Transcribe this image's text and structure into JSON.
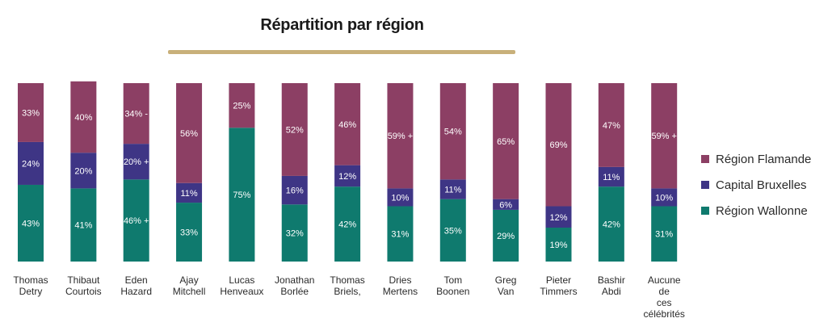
{
  "colors": {
    "flamande": "#8c3f64",
    "bruxelles": "#3e3585",
    "wallonne": "#0f7a6e",
    "accent": "#c8b07a"
  },
  "chart_data": {
    "type": "bar",
    "stacked": true,
    "title": "Répartition par région",
    "ylim": [
      0,
      100
    ],
    "categories": [
      [
        "Thomas",
        "Detry"
      ],
      [
        "Thibaut",
        "Courtois"
      ],
      [
        "Eden",
        "Hazard"
      ],
      [
        "Ajay",
        "Mitchell"
      ],
      [
        "Lucas",
        "Henveaux"
      ],
      [
        "Jonathan",
        "Borlée"
      ],
      [
        "Thomas",
        "Briels,"
      ],
      [
        "Dries",
        "Mertens"
      ],
      [
        "Tom",
        "Boonen"
      ],
      [
        "Greg",
        "Van"
      ],
      [
        "Pieter",
        "Timmers"
      ],
      [
        "Bashir",
        "Abdi"
      ],
      [
        "Aucune",
        "de",
        "ces",
        "célébrités"
      ]
    ],
    "series": [
      {
        "name": "Région Wallonne",
        "key": "wallonne",
        "values": [
          43,
          41,
          46,
          33,
          75,
          32,
          42,
          31,
          35,
          29,
          19,
          42,
          31
        ],
        "labels": [
          "43%",
          "41%",
          "46% +",
          "33%",
          "75%",
          "32%",
          "42%",
          "31%",
          "35%",
          "29%",
          "19%",
          "42%",
          "31%"
        ]
      },
      {
        "name": "Capital Bruxelles",
        "key": "bruxelles",
        "values": [
          24,
          20,
          20,
          11,
          0,
          16,
          12,
          10,
          11,
          6,
          12,
          11,
          10
        ],
        "labels": [
          "24%",
          "20%",
          "20% +",
          "11%",
          "",
          "16%",
          "12%",
          "10%",
          "11%",
          "6%",
          "12%",
          "11%",
          "10%"
        ]
      },
      {
        "name": "Région Flamande",
        "key": "flamande",
        "values": [
          33,
          40,
          34,
          56,
          25,
          52,
          46,
          59,
          54,
          65,
          69,
          47,
          59
        ],
        "labels": [
          "33%",
          "40%",
          "34% -",
          "56%",
          "25%",
          "52%",
          "46%",
          "59% +",
          "54%",
          "65%",
          "69%",
          "47%",
          "59% +"
        ]
      }
    ],
    "legend": {
      "position": "right",
      "items": [
        {
          "label": "Région Flamande",
          "key": "flamande"
        },
        {
          "label": "Capital Bruxelles",
          "key": "bruxelles"
        },
        {
          "label": "Région Wallonne",
          "key": "wallonne"
        }
      ]
    }
  }
}
